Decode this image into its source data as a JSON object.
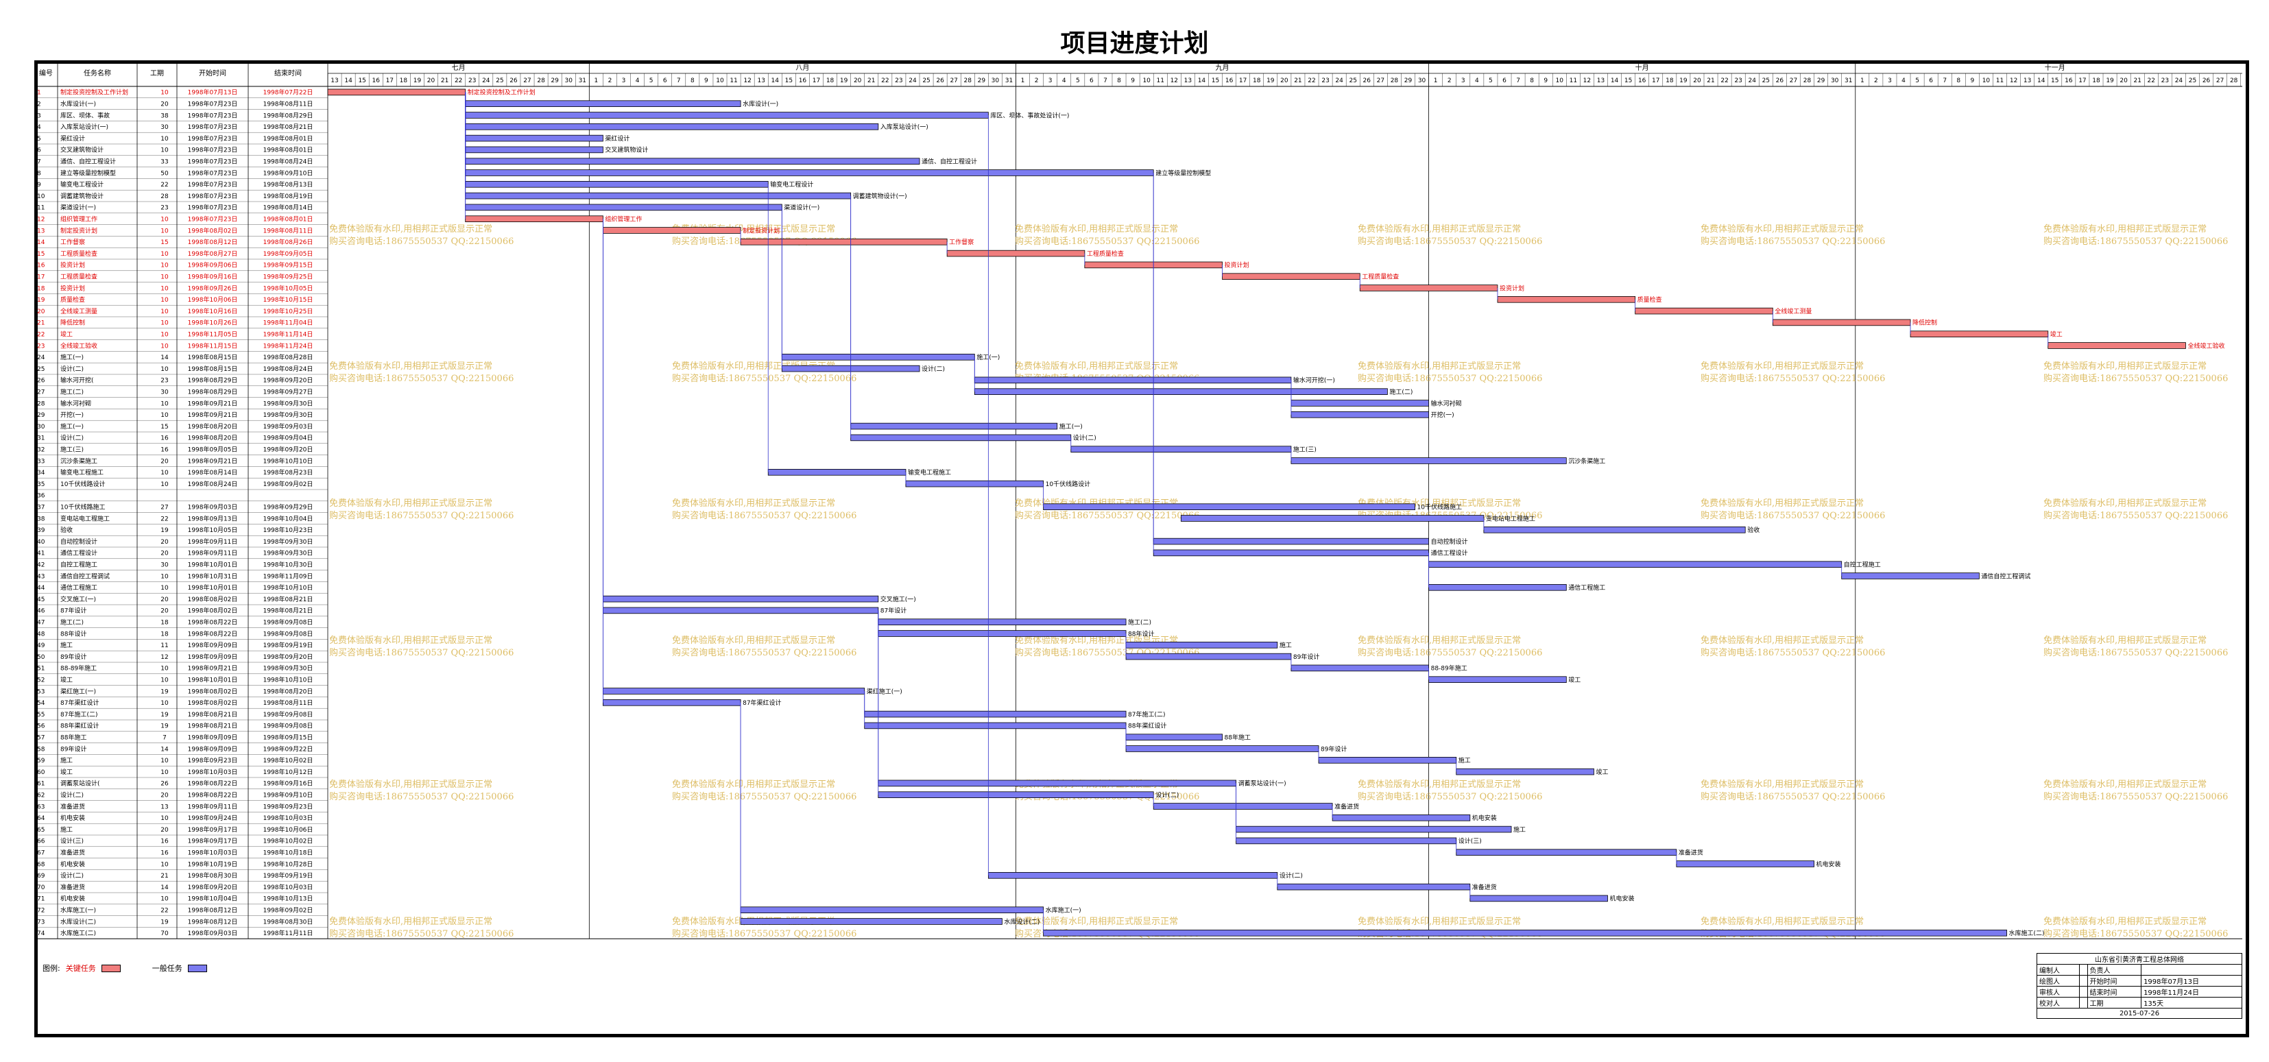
{
  "page_title": "项目进度计划",
  "table_headers": {
    "id": "编号",
    "name": "任务名称",
    "duration": "工期",
    "start": "开始时间",
    "finish": "结束时间"
  },
  "months": [
    "七月",
    "八月",
    "九月",
    "十月",
    "十一月"
  ],
  "legend": {
    "label": "图例:",
    "critical": "关键任务",
    "normal": "一般任务",
    "critical_color": "#f07d7d",
    "normal_color": "#7b7bf0"
  },
  "watermark": {
    "line1": "免费体验版有水印,用相邦正式版显示正常",
    "line2": "购买咨询电话:18675550537 QQ:22150066"
  },
  "title_block": {
    "org": "山东省引黄济青工程总体网络",
    "rows": [
      [
        "编制人",
        "",
        "负责人",
        ""
      ],
      [
        "绘图人",
        "",
        "开始时间",
        "1998年07月13日"
      ],
      [
        "审核人",
        "",
        "结束时间",
        "1998年11月24日"
      ],
      [
        "校对人",
        "",
        "工期",
        "135天"
      ]
    ],
    "date": "2015-07-26"
  },
  "tasks": [
    {
      "id": "1",
      "name": "制定投资控制及工作计划",
      "dur": "10",
      "start": "1998年07月13日",
      "end": "1998年07月22日",
      "crit": true,
      "bar": "制定投资控制及工作计划"
    },
    {
      "id": "2",
      "name": "水库设计(一)",
      "dur": "20",
      "start": "1998年07月23日",
      "end": "1998年08月11日",
      "crit": false,
      "bar": "水库设计(一)"
    },
    {
      "id": "3",
      "name": "库区、坝体、事故",
      "dur": "38",
      "start": "1998年07月23日",
      "end": "1998年08月29日",
      "crit": false,
      "bar": "库区、坝体、事故处设计(一)"
    },
    {
      "id": "4",
      "name": "入库泵站设计(一)",
      "dur": "30",
      "start": "1998年07月23日",
      "end": "1998年08月21日",
      "crit": false,
      "bar": "入库泵站设计(一)"
    },
    {
      "id": "5",
      "name": "渠红设计",
      "dur": "10",
      "start": "1998年07月23日",
      "end": "1998年08月01日",
      "crit": false,
      "bar": "渠红设计"
    },
    {
      "id": "6",
      "name": "交叉建筑物设计",
      "dur": "10",
      "start": "1998年07月23日",
      "end": "1998年08月01日",
      "crit": false,
      "bar": "交叉建筑物设计"
    },
    {
      "id": "7",
      "name": "通信、自控工程设计",
      "dur": "33",
      "start": "1998年07月23日",
      "end": "1998年08月24日",
      "crit": false,
      "bar": "通信、自控工程设计"
    },
    {
      "id": "8",
      "name": "建立等级量控制模型",
      "dur": "50",
      "start": "1998年07月23日",
      "end": "1998年09月10日",
      "crit": false,
      "bar": "建立等级量控制模型"
    },
    {
      "id": "9",
      "name": "输变电工程设计",
      "dur": "22",
      "start": "1998年07月23日",
      "end": "1998年08月13日",
      "crit": false,
      "bar": "输变电工程设计"
    },
    {
      "id": "10",
      "name": "调蓄建筑物设计",
      "dur": "28",
      "start": "1998年07月23日",
      "end": "1998年08月19日",
      "crit": false,
      "bar": "调蓄建筑物设计(一)"
    },
    {
      "id": "11",
      "name": "渠道设计(一)",
      "dur": "23",
      "start": "1998年07月23日",
      "end": "1998年08月14日",
      "crit": false,
      "bar": "渠道设计(一)"
    },
    {
      "id": "12",
      "name": "组织管理工作",
      "dur": "10",
      "start": "1998年07月23日",
      "end": "1998年08月01日",
      "crit": true,
      "bar": "组织管理工作"
    },
    {
      "id": "13",
      "name": "制定投资计划",
      "dur": "10",
      "start": "1998年08月02日",
      "end": "1998年08月11日",
      "crit": true,
      "bar": "制定投资计划"
    },
    {
      "id": "14",
      "name": "工作督察",
      "dur": "15",
      "start": "1998年08月12日",
      "end": "1998年08月26日",
      "crit": true,
      "bar": "工作督察"
    },
    {
      "id": "15",
      "name": "工程质量检查",
      "dur": "10",
      "start": "1998年08月27日",
      "end": "1998年09月05日",
      "crit": true,
      "bar": "工程质量检查"
    },
    {
      "id": "16",
      "name": "投资计划",
      "dur": "10",
      "start": "1998年09月06日",
      "end": "1998年09月15日",
      "crit": true,
      "bar": "投资计划"
    },
    {
      "id": "17",
      "name": "工程质量检查",
      "dur": "10",
      "start": "1998年09月16日",
      "end": "1998年09月25日",
      "crit": true,
      "bar": "工程质量检查"
    },
    {
      "id": "18",
      "name": "投资计划",
      "dur": "10",
      "start": "1998年09月26日",
      "end": "1998年10月05日",
      "crit": true,
      "bar": "投资计划"
    },
    {
      "id": "19",
      "name": "质量检查",
      "dur": "10",
      "start": "1998年10月06日",
      "end": "1998年10月15日",
      "crit": true,
      "bar": "质量检查"
    },
    {
      "id": "20",
      "name": "全线竣工测量",
      "dur": "10",
      "start": "1998年10月16日",
      "end": "1998年10月25日",
      "crit": true,
      "bar": "全线竣工测量"
    },
    {
      "id": "21",
      "name": "降低控制",
      "dur": "10",
      "start": "1998年10月26日",
      "end": "1998年11月04日",
      "crit": true,
      "bar": "降低控制"
    },
    {
      "id": "22",
      "name": "竣工",
      "dur": "10",
      "start": "1998年11月05日",
      "end": "1998年11月14日",
      "crit": true,
      "bar": "竣工"
    },
    {
      "id": "23",
      "name": "全线竣工验收",
      "dur": "10",
      "start": "1998年11月15日",
      "end": "1998年11月24日",
      "crit": true,
      "bar": "全线竣工验收"
    },
    {
      "id": "24",
      "name": "施工(一)",
      "dur": "14",
      "start": "1998年08月15日",
      "end": "1998年08月28日",
      "crit": false,
      "bar": "施工(一)"
    },
    {
      "id": "25",
      "name": "设计(二)",
      "dur": "10",
      "start": "1998年08月15日",
      "end": "1998年08月24日",
      "crit": false,
      "bar": "设计(二)"
    },
    {
      "id": "26",
      "name": "输水河开挖(",
      "dur": "23",
      "start": "1998年08月29日",
      "end": "1998年09月20日",
      "crit": false,
      "bar": "输水河开挖(一)"
    },
    {
      "id": "27",
      "name": "施工(二)",
      "dur": "30",
      "start": "1998年08月29日",
      "end": "1998年09月27日",
      "crit": false,
      "bar": "施工(二)"
    },
    {
      "id": "28",
      "name": "输水河衬砌",
      "dur": "10",
      "start": "1998年09月21日",
      "end": "1998年09月30日",
      "crit": false,
      "bar": "输水河衬砌"
    },
    {
      "id": "29",
      "name": "开挖(一)",
      "dur": "10",
      "start": "1998年09月21日",
      "end": "1998年09月30日",
      "crit": false,
      "bar": "开挖(一)"
    },
    {
      "id": "30",
      "name": "施工(一)",
      "dur": "15",
      "start": "1998年08月20日",
      "end": "1998年09月03日",
      "crit": false,
      "bar": "施工(一)"
    },
    {
      "id": "31",
      "name": "设计(二)",
      "dur": "16",
      "start": "1998年08月20日",
      "end": "1998年09月04日",
      "crit": false,
      "bar": "设计(二)"
    },
    {
      "id": "32",
      "name": "施工(三)",
      "dur": "16",
      "start": "1998年09月05日",
      "end": "1998年09月20日",
      "crit": false,
      "bar": "施工(三)"
    },
    {
      "id": "33",
      "name": "沉沙条渠施工",
      "dur": "20",
      "start": "1998年09月21日",
      "end": "1998年10月10日",
      "crit": false,
      "bar": "沉沙条渠施工"
    },
    {
      "id": "34",
      "name": "输变电工程施工",
      "dur": "10",
      "start": "1998年08月14日",
      "end": "1998年08月23日",
      "crit": false,
      "bar": "输变电工程施工"
    },
    {
      "id": "35",
      "name": "10千伏线路设计",
      "dur": "10",
      "start": "1998年08月24日",
      "end": "1998年09月02日",
      "crit": false,
      "bar": "10千伏线路设计"
    },
    {
      "id": "36",
      "name": "",
      "dur": "",
      "start": "",
      "end": "",
      "crit": false,
      "bar": ""
    },
    {
      "id": "37",
      "name": "10千伏线路施工",
      "dur": "27",
      "start": "1998年09月03日",
      "end": "1998年09月29日",
      "crit": false,
      "bar": "10千伏线路施工"
    },
    {
      "id": "38",
      "name": "变电站电工程施工",
      "dur": "22",
      "start": "1998年09月13日",
      "end": "1998年10月04日",
      "crit": false,
      "bar": "变电站电工程施工"
    },
    {
      "id": "39",
      "name": "验收",
      "dur": "19",
      "start": "1998年10月05日",
      "end": "1998年10月23日",
      "crit": false,
      "bar": "验收"
    },
    {
      "id": "40",
      "name": "自动控制设计",
      "dur": "20",
      "start": "1998年09月11日",
      "end": "1998年09月30日",
      "crit": false,
      "bar": "自动控制设计"
    },
    {
      "id": "41",
      "name": "通信工程设计",
      "dur": "20",
      "start": "1998年09月11日",
      "end": "1998年09月30日",
      "crit": false,
      "bar": "通信工程设计"
    },
    {
      "id": "42",
      "name": "自控工程施工",
      "dur": "30",
      "start": "1998年10月01日",
      "end": "1998年10月30日",
      "crit": false,
      "bar": "自控工程施工"
    },
    {
      "id": "43",
      "name": "通信自控工程调试",
      "dur": "10",
      "start": "1998年10月31日",
      "end": "1998年11月09日",
      "crit": false,
      "bar": "通信自控工程调试"
    },
    {
      "id": "44",
      "name": "通信工程施工",
      "dur": "10",
      "start": "1998年10月01日",
      "end": "1998年10月10日",
      "crit": false,
      "bar": "通信工程施工"
    },
    {
      "id": "45",
      "name": "交叉施工(一)",
      "dur": "20",
      "start": "1998年08月02日",
      "end": "1998年08月21日",
      "crit": false,
      "bar": "交叉施工(一)"
    },
    {
      "id": "46",
      "name": "87年设计",
      "dur": "20",
      "start": "1998年08月02日",
      "end": "1998年08月21日",
      "crit": false,
      "bar": "87年设计"
    },
    {
      "id": "47",
      "name": "施工(二)",
      "dur": "18",
      "start": "1998年08月22日",
      "end": "1998年09月08日",
      "crit": false,
      "bar": "施工(二)"
    },
    {
      "id": "48",
      "name": "88年设计",
      "dur": "18",
      "start": "1998年08月22日",
      "end": "1998年09月08日",
      "crit": false,
      "bar": "88年设计"
    },
    {
      "id": "49",
      "name": "施工",
      "dur": "11",
      "start": "1998年09月09日",
      "end": "1998年09月19日",
      "crit": false,
      "bar": "施工"
    },
    {
      "id": "50",
      "name": "89年设计",
      "dur": "12",
      "start": "1998年09月09日",
      "end": "1998年09月20日",
      "crit": false,
      "bar": "89年设计"
    },
    {
      "id": "51",
      "name": "88-89年施工",
      "dur": "10",
      "start": "1998年09月21日",
      "end": "1998年09月30日",
      "crit": false,
      "bar": "88-89年施工"
    },
    {
      "id": "52",
      "name": "竣工",
      "dur": "10",
      "start": "1998年10月01日",
      "end": "1998年10月10日",
      "crit": false,
      "bar": "竣工"
    },
    {
      "id": "53",
      "name": "渠红施工(一)",
      "dur": "19",
      "start": "1998年08月02日",
      "end": "1998年08月20日",
      "crit": false,
      "bar": "渠红施工(一)"
    },
    {
      "id": "54",
      "name": "87年渠红设计",
      "dur": "10",
      "start": "1998年08月02日",
      "end": "1998年08月11日",
      "crit": false,
      "bar": "87年渠红设计"
    },
    {
      "id": "55",
      "name": "87年施工(二)",
      "dur": "19",
      "start": "1998年08月21日",
      "end": "1998年09月08日",
      "crit": false,
      "bar": "87年施工(二)"
    },
    {
      "id": "56",
      "name": "88年渠红设计",
      "dur": "19",
      "start": "1998年08月21日",
      "end": "1998年09月08日",
      "crit": false,
      "bar": "88年渠红设计"
    },
    {
      "id": "57",
      "name": "88年施工",
      "dur": "7",
      "start": "1998年09月09日",
      "end": "1998年09月15日",
      "crit": false,
      "bar": "88年施工"
    },
    {
      "id": "58",
      "name": "89年设计",
      "dur": "14",
      "start": "1998年09月09日",
      "end": "1998年09月22日",
      "crit": false,
      "bar": "89年设计"
    },
    {
      "id": "59",
      "name": "施工",
      "dur": "10",
      "start": "1998年09月23日",
      "end": "1998年10月02日",
      "crit": false,
      "bar": "施工"
    },
    {
      "id": "60",
      "name": "竣工",
      "dur": "10",
      "start": "1998年10月03日",
      "end": "1998年10月12日",
      "crit": false,
      "bar": "竣工"
    },
    {
      "id": "61",
      "name": "调蓄泵站设计(",
      "dur": "26",
      "start": "1998年08月22日",
      "end": "1998年09月16日",
      "crit": false,
      "bar": "调蓄泵站设计(一)"
    },
    {
      "id": "62",
      "name": "设计(二)",
      "dur": "20",
      "start": "1998年08月22日",
      "end": "1998年09月10日",
      "crit": false,
      "bar": "设计(二)"
    },
    {
      "id": "63",
      "name": "准备进货",
      "dur": "13",
      "start": "1998年09月11日",
      "end": "1998年09月23日",
      "crit": false,
      "bar": "准备进货"
    },
    {
      "id": "64",
      "name": "机电安装",
      "dur": "10",
      "start": "1998年09月24日",
      "end": "1998年10月03日",
      "crit": false,
      "bar": "机电安装"
    },
    {
      "id": "65",
      "name": "施工",
      "dur": "20",
      "start": "1998年09月17日",
      "end": "1998年10月06日",
      "crit": false,
      "bar": "施工"
    },
    {
      "id": "66",
      "name": "设计(三)",
      "dur": "16",
      "start": "1998年09月17日",
      "end": "1998年10月02日",
      "crit": false,
      "bar": "设计(三)"
    },
    {
      "id": "67",
      "name": "准备进货",
      "dur": "16",
      "start": "1998年10月03日",
      "end": "1998年10月18日",
      "crit": false,
      "bar": "准备进货"
    },
    {
      "id": "68",
      "name": "机电安装",
      "dur": "10",
      "start": "1998年10月19日",
      "end": "1998年10月28日",
      "crit": false,
      "bar": "机电安装"
    },
    {
      "id": "69",
      "name": "设计(二)",
      "dur": "21",
      "start": "1998年08月30日",
      "end": "1998年09月19日",
      "crit": false,
      "bar": "设计(二)"
    },
    {
      "id": "70",
      "name": "准备进货",
      "dur": "14",
      "start": "1998年09月20日",
      "end": "1998年10月03日",
      "crit": false,
      "bar": "准备进货"
    },
    {
      "id": "71",
      "name": "机电安装",
      "dur": "10",
      "start": "1998年10月04日",
      "end": "1998年10月13日",
      "crit": false,
      "bar": "机电安装"
    },
    {
      "id": "72",
      "name": "水库施工(一)",
      "dur": "22",
      "start": "1998年08月12日",
      "end": "1998年09月02日",
      "crit": false,
      "bar": "水库施工(一)"
    },
    {
      "id": "73",
      "name": "水库设计(二)",
      "dur": "19",
      "start": "1998年08月12日",
      "end": "1998年08月30日",
      "crit": false,
      "bar": "水库设计(二)"
    },
    {
      "id": "74",
      "name": "水库施工(二)",
      "dur": "70",
      "start": "1998年09月03日",
      "end": "1998年11月11日",
      "crit": false,
      "bar": "水库施工(二)"
    }
  ]
}
